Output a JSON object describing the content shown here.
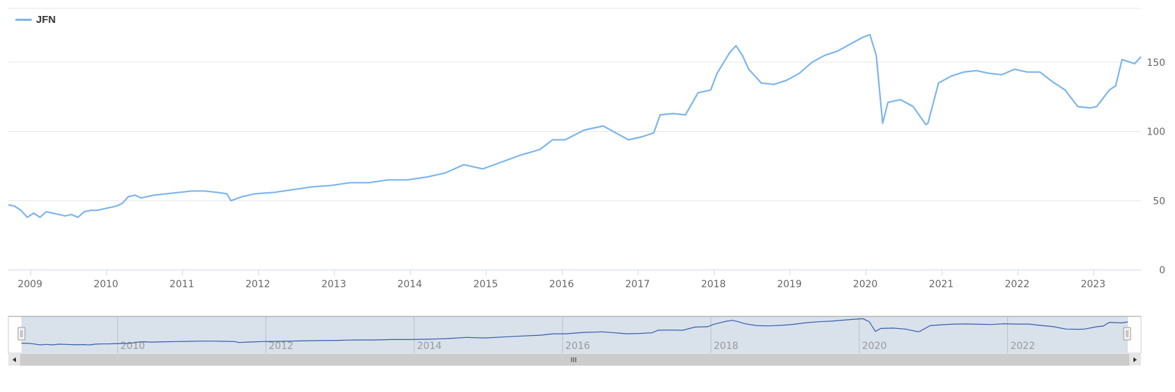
{
  "chart_data": {
    "type": "line",
    "legend": {
      "position": "top-left"
    },
    "grid": true,
    "ylim": [
      0,
      190
    ],
    "yticks": [
      0,
      50,
      100,
      150
    ],
    "xlim": [
      "2008-09-15",
      "2023-08-15"
    ],
    "xticks": [
      "2009",
      "2010",
      "2011",
      "2012",
      "2013",
      "2014",
      "2015",
      "2016",
      "2017",
      "2018",
      "2019",
      "2020",
      "2021",
      "2022",
      "2023"
    ],
    "series": [
      {
        "name": "JFN",
        "color": "#7cb5ec",
        "x": [
          "2008-09-15",
          "2008-10-15",
          "2008-11-15",
          "2008-12-15",
          "2009-01-15",
          "2009-02-15",
          "2009-03-15",
          "2009-04-15",
          "2009-05-15",
          "2009-06-15",
          "2009-07-15",
          "2009-08-15",
          "2009-09-15",
          "2009-10-15",
          "2009-11-15",
          "2009-12-15",
          "2010-01-15",
          "2010-02-15",
          "2010-03-15",
          "2010-04-15",
          "2010-05-15",
          "2010-06-15",
          "2010-07-15",
          "2010-08-15",
          "2010-10-15",
          "2010-12-15",
          "2011-02-15",
          "2011-04-15",
          "2011-06-15",
          "2011-08-01",
          "2011-08-20",
          "2011-10-15",
          "2011-12-15",
          "2012-03-15",
          "2012-06-15",
          "2012-09-15",
          "2012-12-15",
          "2013-03-15",
          "2013-06-15",
          "2013-09-15",
          "2013-12-15",
          "2014-03-15",
          "2014-06-15",
          "2014-09-15",
          "2014-12-15",
          "2015-03-15",
          "2015-06-15",
          "2015-09-15",
          "2015-11-15",
          "2016-01-15",
          "2016-04-15",
          "2016-07-15",
          "2016-09-15",
          "2016-11-15",
          "2017-01-15",
          "2017-03-15",
          "2017-04-15",
          "2017-06-15",
          "2017-08-15",
          "2017-10-15",
          "2017-12-15",
          "2018-01-15",
          "2018-03-15",
          "2018-04-15",
          "2018-05-15",
          "2018-06-15",
          "2018-08-15",
          "2018-10-15",
          "2018-12-15",
          "2019-02-15",
          "2019-04-15",
          "2019-06-15",
          "2019-08-15",
          "2019-10-15",
          "2019-12-15",
          "2020-01-20",
          "2020-02-20",
          "2020-03-20",
          "2020-04-15",
          "2020-06-15",
          "2020-08-15",
          "2020-10-15",
          "2020-10-25",
          "2020-12-15",
          "2021-02-15",
          "2021-04-15",
          "2021-06-15",
          "2021-08-15",
          "2021-10-15",
          "2021-12-15",
          "2022-02-15",
          "2022-04-15",
          "2022-06-15",
          "2022-08-15",
          "2022-10-15",
          "2022-12-15",
          "2023-01-15",
          "2023-03-15",
          "2023-04-15",
          "2023-05-15",
          "2023-07-15",
          "2023-08-15"
        ],
        "values": [
          47,
          46,
          43,
          38,
          41,
          38,
          42,
          41,
          40,
          39,
          40,
          38,
          42,
          43,
          43,
          44,
          45,
          46,
          48,
          53,
          54,
          52,
          53,
          54,
          55,
          56,
          57,
          57,
          56,
          55,
          50,
          53,
          55,
          56,
          58,
          60,
          61,
          63,
          63,
          65,
          65,
          67,
          70,
          76,
          73,
          78,
          83,
          87,
          94,
          94,
          101,
          104,
          99,
          94,
          96,
          99,
          112,
          113,
          112,
          128,
          130,
          142,
          157,
          162,
          155,
          145,
          135,
          134,
          137,
          142,
          150,
          155,
          158,
          163,
          168,
          170,
          155,
          106,
          121,
          123,
          118,
          105,
          106,
          135,
          140,
          143,
          144,
          142,
          141,
          145,
          143,
          143,
          136,
          130,
          118,
          117,
          118,
          130,
          133,
          152,
          149,
          154
        ]
      }
    ]
  },
  "navigator": {
    "labels": [
      "2010",
      "2012",
      "2014",
      "2016",
      "2018",
      "2020",
      "2022"
    ]
  }
}
